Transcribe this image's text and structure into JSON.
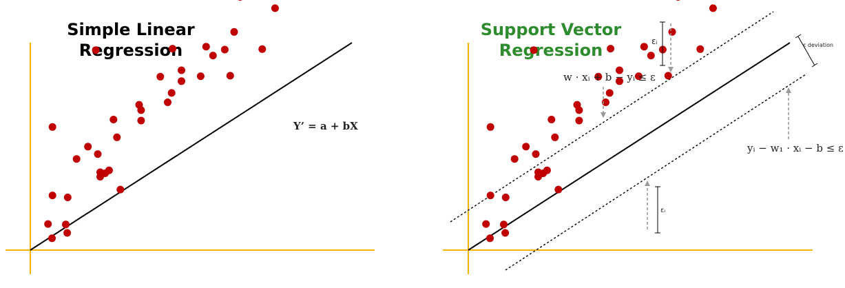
{
  "left_panel": {
    "title_lines": [
      "Simple Linear",
      "Regression"
    ],
    "equation": "Y’ = a + bX"
  },
  "right_panel": {
    "title_lines": [
      "Support Vector",
      "Regression"
    ],
    "title_color": "#2e8b2e",
    "upper_constraint": "w · xᵢ + b − yᵢ ≤ ε",
    "lower_constraint": "yᵢ − w₁ · xᵢ − b ≤ ε",
    "epsilon_deviation_label": "ε deviation",
    "epsilon_i_upper": "εᵢ",
    "epsilon_i_lower": "εᵢ"
  },
  "colors": {
    "axis": "#f5b301",
    "point": "#c00000",
    "line": "#000000",
    "arrow": "#999999"
  },
  "points": [
    {
      "x": 0.44,
      "y": 0.24
    },
    {
      "x": 0.36,
      "y": 0.53
    },
    {
      "x": 0.72,
      "y": 0.52
    },
    {
      "x": 0.75,
      "y": 0.35
    },
    {
      "x": 1.42,
      "y": 1.49
    },
    {
      "x": 1.83,
      "y": 1.23
    },
    {
      "x": 0.76,
      "y": 1.07
    },
    {
      "x": 0.45,
      "y": 1.11
    },
    {
      "x": 1.52,
      "y": 1.56
    },
    {
      "x": 1.37,
      "y": 1.95
    },
    {
      "x": 1.42,
      "y": 1.58
    },
    {
      "x": 1.6,
      "y": 1.62
    },
    {
      "x": 0.94,
      "y": 1.85
    },
    {
      "x": 1.17,
      "y": 2.1
    },
    {
      "x": 0.45,
      "y": 2.5
    },
    {
      "x": 1.76,
      "y": 2.29
    },
    {
      "x": 1.69,
      "y": 2.65
    },
    {
      "x": 2.21,
      "y": 2.95
    },
    {
      "x": 2.25,
      "y": 2.84
    },
    {
      "x": 2.25,
      "y": 2.63
    },
    {
      "x": 2.79,
      "y": 3.0
    },
    {
      "x": 2.64,
      "y": 3.52
    },
    {
      "x": 2.87,
      "y": 3.19
    },
    {
      "x": 3.07,
      "y": 3.43
    },
    {
      "x": 3.07,
      "y": 3.65
    },
    {
      "x": 3.46,
      "y": 3.53
    },
    {
      "x": 3.57,
      "y": 4.13
    },
    {
      "x": 3.71,
      "y": 3.95
    },
    {
      "x": 3.95,
      "y": 4.07
    },
    {
      "x": 4.06,
      "y": 3.54
    },
    {
      "x": 4.26,
      "y": 5.14
    },
    {
      "x": 4.14,
      "y": 4.43
    },
    {
      "x": 2.89,
      "y": 4.09
    },
    {
      "x": 1.33,
      "y": 4.06
    },
    {
      "x": 4.71,
      "y": 4.08
    },
    {
      "x": 4.97,
      "y": 4.91
    },
    {
      "x": 5.21,
      "y": 5.21
    }
  ]
}
